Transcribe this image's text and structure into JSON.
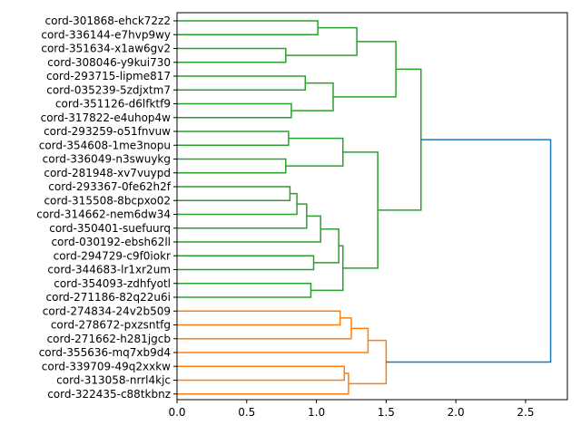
{
  "chart_data": {
    "type": "dendrogram",
    "orientation": "horizontal",
    "title": "",
    "xlabel": "",
    "ylabel": "",
    "xlim": [
      0,
      2.8
    ],
    "xticks": [
      {
        "value": 0.0,
        "label": "0.0"
      },
      {
        "value": 0.5,
        "label": "0.5"
      },
      {
        "value": 1.0,
        "label": "1.0"
      },
      {
        "value": 1.5,
        "label": "1.5"
      },
      {
        "value": 2.0,
        "label": "2.0"
      },
      {
        "value": 2.5,
        "label": "2.5"
      }
    ],
    "colors": {
      "c1": "#2ca02c",
      "c2": "#ff7f0e",
      "root": "#1f77b4"
    },
    "leaves": [
      "cord-301868-ehck72z2",
      "cord-336144-e7hvp9wy",
      "cord-351634-x1aw6gv2",
      "cord-308046-y9kui730",
      "cord-293715-lipme817",
      "cord-035239-5zdjxtm7",
      "cord-351126-d6lfktf9",
      "cord-317822-e4uhop4w",
      "cord-293259-o51fnvuw",
      "cord-354608-1me3nopu",
      "cord-336049-n3swuykg",
      "cord-281948-xv7vuypd",
      "cord-293367-0fe62h2f",
      "cord-315508-8bcpxo02",
      "cord-314662-nem6dw34",
      "cord-350401-suefuurq",
      "cord-030192-ebsh62ll",
      "cord-294729-c9f0iokr",
      "cord-344683-lr1xr2um",
      "cord-354093-zdhfyotl",
      "cord-271186-82q22u6i",
      "cord-274834-24v2b509",
      "cord-278672-pxzsntfg",
      "cord-271662-h281jgcb",
      "cord-355636-mq7xb9d4",
      "cord-339709-49q2xxkw",
      "cord-313058-nrrl4kjc",
      "cord-322435-c88tkbnz"
    ],
    "merges": [
      {
        "id": "m1",
        "a": "L0",
        "b": "L1",
        "height": 1.01,
        "color": "c1"
      },
      {
        "id": "m2",
        "a": "L2",
        "b": "L3",
        "height": 0.78,
        "color": "c1"
      },
      {
        "id": "m3",
        "a": "m1",
        "b": "m2",
        "height": 1.29,
        "color": "c1"
      },
      {
        "id": "m4",
        "a": "L4",
        "b": "L5",
        "height": 0.92,
        "color": "c1"
      },
      {
        "id": "m5",
        "a": "L6",
        "b": "L7",
        "height": 0.82,
        "color": "c1"
      },
      {
        "id": "m6",
        "a": "m4",
        "b": "m5",
        "height": 1.12,
        "color": "c1"
      },
      {
        "id": "m7",
        "a": "m3",
        "b": "m6",
        "height": 1.57,
        "color": "c1"
      },
      {
        "id": "m8",
        "a": "L8",
        "b": "L9",
        "height": 0.8,
        "color": "c1"
      },
      {
        "id": "m9",
        "a": "L10",
        "b": "L11",
        "height": 0.78,
        "color": "c1"
      },
      {
        "id": "m10",
        "a": "m8",
        "b": "m9",
        "height": 1.19,
        "color": "c1"
      },
      {
        "id": "m11",
        "a": "L12",
        "b": "L13",
        "height": 0.81,
        "color": "c1"
      },
      {
        "id": "m12",
        "a": "m11",
        "b": "L14",
        "height": 0.86,
        "color": "c1"
      },
      {
        "id": "m13",
        "a": "m12",
        "b": "L15",
        "height": 0.93,
        "color": "c1"
      },
      {
        "id": "m14",
        "a": "m13",
        "b": "L16",
        "height": 1.03,
        "color": "c1"
      },
      {
        "id": "m15",
        "a": "L17",
        "b": "L18",
        "height": 0.98,
        "color": "c1"
      },
      {
        "id": "m16",
        "a": "m14",
        "b": "m15",
        "height": 1.16,
        "color": "c1"
      },
      {
        "id": "m17",
        "a": "L19",
        "b": "L20",
        "height": 0.96,
        "color": "c1"
      },
      {
        "id": "m18",
        "a": "m16",
        "b": "m17",
        "height": 1.19,
        "color": "c1"
      },
      {
        "id": "m19",
        "a": "m10",
        "b": "m18",
        "height": 1.44,
        "color": "c1"
      },
      {
        "id": "m20",
        "a": "m7",
        "b": "m19",
        "height": 1.75,
        "color": "c1"
      },
      {
        "id": "m21",
        "a": "L21",
        "b": "L22",
        "height": 1.17,
        "color": "c2"
      },
      {
        "id": "m22",
        "a": "m21",
        "b": "L23",
        "height": 1.25,
        "color": "c2"
      },
      {
        "id": "m23",
        "a": "m22",
        "b": "L24",
        "height": 1.37,
        "color": "c2"
      },
      {
        "id": "m24",
        "a": "L25",
        "b": "L26",
        "height": 1.2,
        "color": "c2"
      },
      {
        "id": "m25",
        "a": "m24",
        "b": "L27",
        "height": 1.23,
        "color": "c2"
      },
      {
        "id": "m26",
        "a": "m23",
        "b": "m25",
        "height": 1.5,
        "color": "c2"
      },
      {
        "id": "m27",
        "a": "m20",
        "b": "m26",
        "height": 2.68,
        "color": "root"
      }
    ]
  }
}
